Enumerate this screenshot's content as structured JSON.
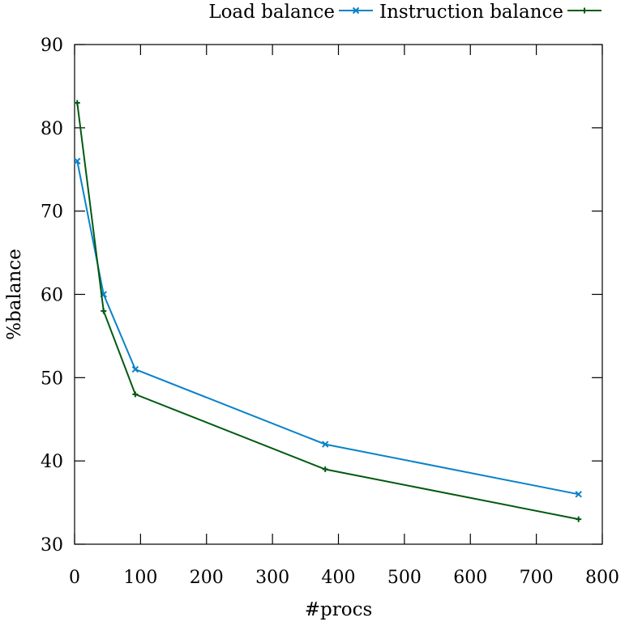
{
  "chart_data": {
    "type": "line",
    "title": "",
    "xlabel": "#procs",
    "ylabel": "%balance",
    "xlim": [
      0,
      800
    ],
    "ylim": [
      30,
      90
    ],
    "xticks": [
      0,
      100,
      200,
      300,
      400,
      500,
      600,
      700,
      800
    ],
    "yticks": [
      30,
      40,
      50,
      60,
      70,
      80,
      90
    ],
    "grid": false,
    "legend_position": "top-right (outside plot)",
    "series": [
      {
        "name": "Load balance",
        "color": "#0a82c8",
        "marker": "x",
        "x": [
          4,
          44,
          92,
          380,
          764
        ],
        "y": [
          76,
          60,
          51,
          42,
          36
        ]
      },
      {
        "name": "Instruction balance",
        "color": "#005a10",
        "marker": "+",
        "x": [
          4,
          44,
          92,
          380,
          764
        ],
        "y": [
          83,
          58,
          48,
          39,
          33
        ]
      }
    ]
  }
}
